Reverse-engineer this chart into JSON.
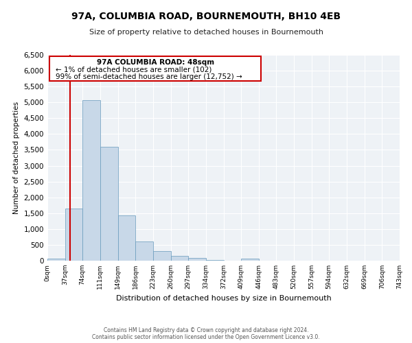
{
  "title": "97A, COLUMBIA ROAD, BOURNEMOUTH, BH10 4EB",
  "subtitle": "Size of property relative to detached houses in Bournemouth",
  "xlabel": "Distribution of detached houses by size in Bournemouth",
  "ylabel": "Number of detached properties",
  "bar_color": "#c8d8e8",
  "bar_edge_color": "#6699bb",
  "bin_edges": [
    0,
    37,
    74,
    111,
    149,
    186,
    223,
    260,
    297,
    334,
    372,
    409,
    446,
    483,
    520,
    557,
    594,
    632,
    669,
    706,
    743
  ],
  "bar_heights": [
    70,
    1650,
    5080,
    3600,
    1420,
    610,
    300,
    155,
    80,
    30,
    0,
    55,
    0,
    0,
    0,
    0,
    0,
    0,
    0,
    0
  ],
  "tick_labels": [
    "0sqm",
    "37sqm",
    "74sqm",
    "111sqm",
    "149sqm",
    "186sqm",
    "223sqm",
    "260sqm",
    "297sqm",
    "334sqm",
    "372sqm",
    "409sqm",
    "446sqm",
    "483sqm",
    "520sqm",
    "557sqm",
    "594sqm",
    "632sqm",
    "669sqm",
    "706sqm",
    "743sqm"
  ],
  "ylim": [
    0,
    6500
  ],
  "yticks": [
    0,
    500,
    1000,
    1500,
    2000,
    2500,
    3000,
    3500,
    4000,
    4500,
    5000,
    5500,
    6000,
    6500
  ],
  "property_line_x": 48,
  "property_line_color": "#cc0000",
  "annotation_line1": "97A COLUMBIA ROAD: 48sqm",
  "annotation_line2": "← 1% of detached houses are smaller (102)",
  "annotation_line3": "99% of semi-detached houses are larger (12,752) →",
  "footer_line1": "Contains HM Land Registry data © Crown copyright and database right 2024.",
  "footer_line2": "Contains public sector information licensed under the Open Government Licence v3.0.",
  "background_color": "#eef2f6",
  "grid_color": "#ffffff",
  "fig_bg_color": "#ffffff"
}
